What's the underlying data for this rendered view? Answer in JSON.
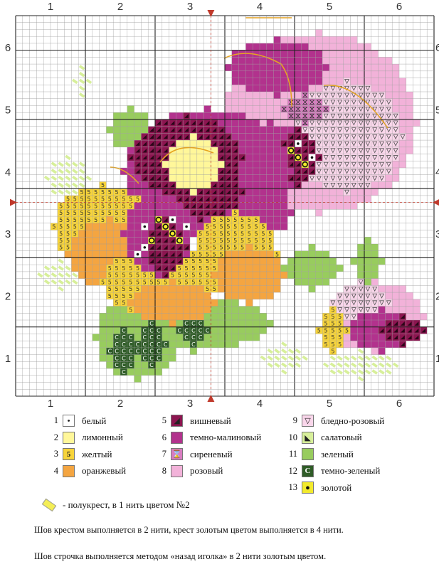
{
  "axis_labels": {
    "x": [
      "1",
      "2",
      "3",
      "4",
      "5",
      "6"
    ],
    "y": [
      "6",
      "5",
      "4",
      "3",
      "2",
      "1"
    ]
  },
  "legend": [
    {
      "num": "1",
      "symbol": "•",
      "label": "белый",
      "color": "#ffffff"
    },
    {
      "num": "2",
      "symbol": "",
      "label": "лимонный",
      "color": "#fff79a"
    },
    {
      "num": "3",
      "symbol": "5",
      "label": "желтый",
      "color": "#f7d43a"
    },
    {
      "num": "4",
      "symbol": "",
      "label": "оранжевый",
      "color": "#f4a541"
    },
    {
      "num": "5",
      "symbol": "◢",
      "label": "вишневый",
      "color": "#8c1550"
    },
    {
      "num": "6",
      "symbol": "",
      "label": "темно-малиновый",
      "color": "#b2328d"
    },
    {
      "num": "7",
      "symbol": "⌛",
      "label": "сиреневый",
      "color": "#d97dc1"
    },
    {
      "num": "8",
      "symbol": "",
      "label": "розовый",
      "color": "#f2b2d9"
    },
    {
      "num": "9",
      "symbol": "▽",
      "label": "бледно-розовый",
      "color": "#f9d6ea"
    },
    {
      "num": "10",
      "symbol": "◣",
      "label": "салатовый",
      "color": "#d7ef9a"
    },
    {
      "num": "11",
      "symbol": "",
      "label": "зеленый",
      "color": "#98cc5e"
    },
    {
      "num": "12",
      "symbol": "C",
      "label": "темно-зеленый",
      "color": "#2f5c27"
    },
    {
      "num": "13",
      "symbol": "●",
      "label": "золотой",
      "color": "#f2ea2c"
    }
  ],
  "half_stitch_note": "- полукрест, в 1 нить цветом №2",
  "notes": [
    "Шов крестом выполняется в 2 нити, крест  золотым  цветом выполняется в 4 нити.",
    "Шов строчка выполняется методом «назад иголка» в 2 нити золотым цветом."
  ]
}
